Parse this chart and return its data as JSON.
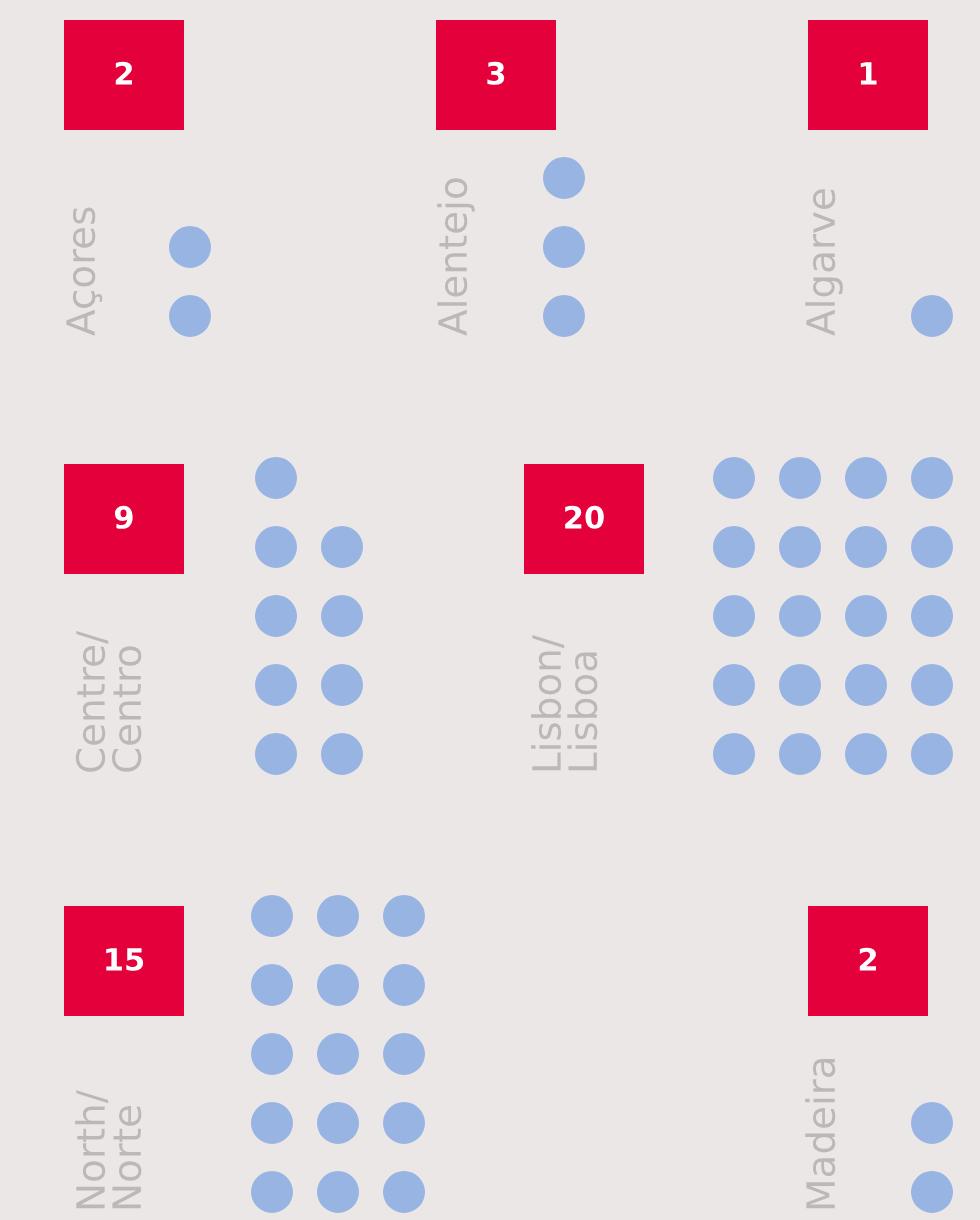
{
  "chart_data": {
    "type": "other",
    "categories": [
      "Açores",
      "Alentejo",
      "Algarve",
      "Centre/\nCentro",
      "Lisbon/\nLisboa",
      "North/\nNorte",
      "Madeira"
    ],
    "values": [
      2,
      3,
      1,
      9,
      20,
      15,
      2
    ],
    "value_labels": [
      "2",
      "3",
      "1",
      "9",
      "20",
      "15",
      "2"
    ],
    "color": "#e4003a"
  }
}
